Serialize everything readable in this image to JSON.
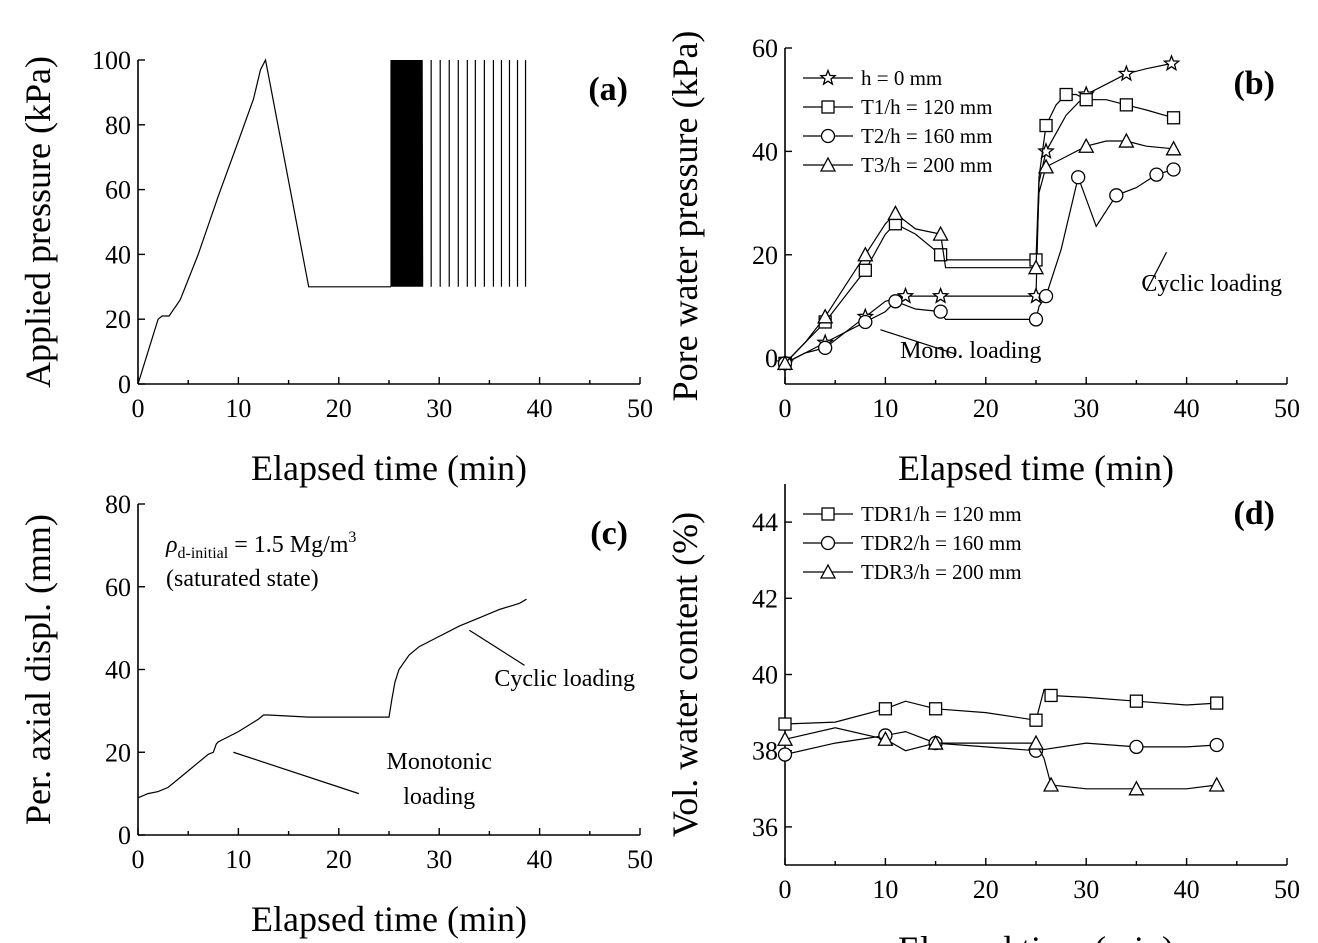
{
  "chart_data": [
    {
      "id": "a",
      "type": "line",
      "panel_label": "(a)",
      "xlabel": "Elapsed time (min)",
      "ylabel": "Applied pressure (kPa)",
      "xlim": [
        0,
        50
      ],
      "ylim": [
        0,
        100
      ],
      "xticks": [
        "0",
        "10",
        "20",
        "30",
        "40",
        "50"
      ],
      "yticks": [
        "0",
        "20",
        "40",
        "60",
        "80",
        "100"
      ],
      "series": [
        {
          "x": [
            0,
            2.0,
            2.4,
            3.1,
            4.2,
            6.0,
            8.0,
            10.0,
            11.5,
            12.2,
            12.7,
            13.2,
            17.0,
            25.2
          ],
          "y": [
            0,
            20,
            21,
            21,
            26,
            40,
            58,
            75,
            88,
            97,
            100,
            92,
            30,
            30
          ]
        }
      ],
      "cyclic": {
        "dense_x_start": 25.2,
        "dense_x_end": 28.3,
        "dense_cycles": 28,
        "sparse_x": [
          29.2,
          30.1,
          31.0,
          31.9,
          32.8,
          33.6,
          34.5,
          35.4,
          36.2,
          37.0,
          37.8,
          38.6
        ],
        "high": 100,
        "low": 30
      }
    },
    {
      "id": "b",
      "type": "line",
      "panel_label": "(b)",
      "xlabel": "Elapsed time (min)",
      "ylabel": "Pore water pressure (kPa)",
      "xlim": [
        0,
        50
      ],
      "ylim": [
        -5,
        60
      ],
      "xticks": [
        "0",
        "10",
        "20",
        "30",
        "40",
        "50"
      ],
      "yticks": [
        "0",
        "20",
        "40",
        "60"
      ],
      "annotations": [
        {
          "text": "Mono. loading",
          "x": 18.5,
          "y": 0
        },
        {
          "text": "Cyclic loading",
          "x": 42.5,
          "y": 13
        }
      ],
      "series": [
        {
          "name": "h = 0 mm",
          "marker": "star",
          "x": [
            0,
            2,
            4,
            6,
            8,
            10,
            12,
            14,
            15.5,
            16,
            25,
            25.3,
            26,
            28,
            30,
            32,
            34,
            36,
            38.5
          ],
          "y": [
            -1,
            1,
            3,
            5,
            8,
            11,
            12,
            12,
            12,
            12,
            12,
            34,
            40,
            47,
            51,
            53,
            55,
            56,
            57
          ]
        },
        {
          "name": "T1/h = 120 mm",
          "marker": "square",
          "x": [
            0,
            2,
            4,
            6,
            8,
            10,
            11,
            13,
            15.5,
            16,
            25,
            25.3,
            26,
            27,
            28,
            29,
            30,
            32,
            34,
            36,
            38.7
          ],
          "y": [
            -1,
            3,
            7,
            12,
            17,
            24,
            26,
            24,
            20,
            19,
            19,
            35,
            45,
            49,
            51,
            51,
            50,
            50,
            49,
            48,
            46.5
          ]
        },
        {
          "name": "T2/h = 160 mm",
          "marker": "circle",
          "x": [
            0,
            2,
            4,
            6,
            8,
            10,
            11,
            13,
            15.5,
            16,
            25,
            25.3,
            26,
            27.5,
            29.2,
            31,
            33,
            35,
            37,
            38.7
          ],
          "y": [
            -1,
            1,
            2,
            5,
            7,
            9,
            11,
            9.5,
            9,
            7.5,
            7.5,
            10,
            12,
            21,
            35,
            25.5,
            31.5,
            33,
            35.5,
            36.5
          ]
        },
        {
          "name": "T3/h = 200 mm",
          "marker": "triangle",
          "x": [
            0,
            2,
            4,
            6,
            8,
            10,
            11,
            13,
            15.5,
            16,
            25,
            25.3,
            26,
            28,
            30,
            32,
            34,
            36,
            38.7
          ],
          "y": [
            -1,
            3,
            8,
            14,
            20,
            26,
            28,
            25,
            24,
            17.5,
            17.5,
            32,
            37,
            39,
            41,
            42,
            42,
            41,
            40.5
          ]
        }
      ]
    },
    {
      "id": "c",
      "type": "line",
      "panel_label": "(c)",
      "xlabel": "Elapsed time (min)",
      "ylabel": "Per. axial displ. (mm)",
      "xlim": [
        0,
        50
      ],
      "ylim": [
        0,
        80
      ],
      "xticks": [
        "0",
        "10",
        "20",
        "30",
        "40",
        "50"
      ],
      "yticks": [
        "0",
        "20",
        "40",
        "60",
        "80"
      ],
      "annotations": [
        {
          "text": "Monotonic",
          "x": 30,
          "y": 16
        },
        {
          "text": "loading",
          "x": 30,
          "y": 7.5
        },
        {
          "text": "Cyclic loading",
          "x": 42.5,
          "y": 36
        }
      ],
      "info_lines": [
        {
          "rho": "ρ",
          "sub": "d-initial",
          "value": " = 1.5 Mg/m",
          "sup": "3"
        },
        {
          "text": "(saturated state)"
        }
      ],
      "series": [
        {
          "x": [
            0,
            1,
            2,
            3,
            4,
            5,
            6,
            7,
            7.5,
            7.8,
            8,
            10,
            12,
            12.5,
            13,
            17,
            25,
            25.3,
            25.6,
            26,
            27,
            28,
            30,
            32,
            34,
            36,
            38,
            38.7
          ],
          "y": [
            9,
            10,
            10.5,
            11.5,
            13.5,
            15.5,
            17.5,
            19.5,
            20,
            22,
            22.5,
            25,
            28,
            29,
            29,
            28.5,
            28.5,
            33,
            37,
            40,
            43.5,
            45.5,
            48,
            50.5,
            52.5,
            54.5,
            56,
            57
          ]
        }
      ]
    },
    {
      "id": "d",
      "type": "line",
      "panel_label": "(d)",
      "xlabel": "Elapsed time (min)",
      "ylabel": "Vol. water content (%)",
      "xlim": [
        0,
        50
      ],
      "ylim": [
        35,
        45
      ],
      "xticks": [
        "0",
        "10",
        "20",
        "30",
        "40",
        "50"
      ],
      "yticks": [
        "36",
        "38",
        "40",
        "42",
        "44"
      ],
      "series": [
        {
          "name": "TDR1/h = 120 mm",
          "marker": "square",
          "x": [
            0,
            5,
            10,
            12,
            15,
            20,
            25,
            25.8,
            26.5,
            30,
            35,
            40,
            43
          ],
          "y": [
            38.7,
            38.75,
            39.1,
            39.3,
            39.1,
            39.0,
            38.8,
            39.6,
            39.45,
            39.4,
            39.3,
            39.2,
            39.25
          ]
        },
        {
          "name": "TDR2/h = 160 mm",
          "marker": "circle",
          "x": [
            0,
            5,
            10,
            12,
            15,
            20,
            25,
            30,
            35,
            40,
            43
          ],
          "y": [
            37.9,
            38.2,
            38.4,
            38.5,
            38.2,
            38.1,
            38.0,
            38.2,
            38.1,
            38.1,
            38.15
          ]
        },
        {
          "name": "TDR3/h = 200 mm",
          "marker": "triangle",
          "x": [
            0,
            5,
            10,
            12,
            15,
            20,
            25,
            25.8,
            26.5,
            30,
            35,
            40,
            43
          ],
          "y": [
            38.3,
            38.6,
            38.3,
            38.0,
            38.2,
            38.2,
            38.2,
            37.8,
            37.1,
            37.0,
            37.0,
            37.0,
            37.1
          ]
        }
      ]
    }
  ]
}
